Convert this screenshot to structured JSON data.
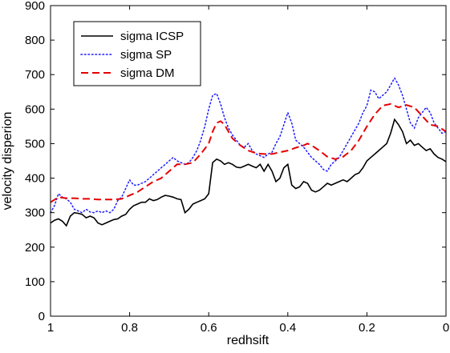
{
  "chart_data": {
    "type": "line",
    "title": "",
    "xlabel": "redhsift",
    "ylabel": "velocity disperion",
    "xlim": [
      1,
      0
    ],
    "xaxis_reversed": true,
    "ylim": [
      0,
      900
    ],
    "xticks": [
      1,
      0.8,
      0.6,
      0.4,
      0.2,
      0
    ],
    "xtick_labels": [
      "1",
      "0.8",
      "0.6",
      "0.4",
      "0.2",
      "0"
    ],
    "yticks": [
      0,
      100,
      200,
      300,
      400,
      500,
      600,
      700,
      800,
      900
    ],
    "ytick_labels": [
      "0",
      "100",
      "200",
      "300",
      "400",
      "500",
      "600",
      "700",
      "800",
      "900"
    ],
    "grid": false,
    "legend_position": "top-left",
    "series": [
      {
        "name": "sigma ICSP",
        "color": "#000000",
        "style": "solid",
        "x": [
          1.0,
          0.99,
          0.98,
          0.97,
          0.96,
          0.95,
          0.94,
          0.93,
          0.92,
          0.91,
          0.9,
          0.89,
          0.88,
          0.87,
          0.86,
          0.85,
          0.84,
          0.83,
          0.82,
          0.81,
          0.8,
          0.79,
          0.78,
          0.77,
          0.76,
          0.75,
          0.74,
          0.73,
          0.72,
          0.71,
          0.7,
          0.69,
          0.68,
          0.67,
          0.66,
          0.65,
          0.64,
          0.63,
          0.62,
          0.61,
          0.6,
          0.59,
          0.58,
          0.57,
          0.56,
          0.55,
          0.54,
          0.53,
          0.52,
          0.51,
          0.5,
          0.49,
          0.48,
          0.47,
          0.46,
          0.45,
          0.44,
          0.43,
          0.42,
          0.41,
          0.4,
          0.39,
          0.38,
          0.37,
          0.36,
          0.35,
          0.34,
          0.33,
          0.32,
          0.31,
          0.3,
          0.29,
          0.28,
          0.27,
          0.26,
          0.25,
          0.24,
          0.23,
          0.22,
          0.21,
          0.2,
          0.19,
          0.18,
          0.17,
          0.16,
          0.15,
          0.14,
          0.13,
          0.12,
          0.11,
          0.1,
          0.09,
          0.08,
          0.07,
          0.06,
          0.05,
          0.04,
          0.03,
          0.02,
          0.01,
          0.0
        ],
        "values": [
          270,
          278,
          282,
          275,
          262,
          290,
          300,
          298,
          295,
          285,
          290,
          285,
          270,
          265,
          270,
          275,
          280,
          282,
          290,
          295,
          310,
          320,
          325,
          330,
          330,
          340,
          335,
          338,
          345,
          350,
          348,
          345,
          340,
          338,
          300,
          310,
          325,
          330,
          335,
          340,
          355,
          445,
          455,
          450,
          440,
          445,
          440,
          432,
          430,
          435,
          440,
          435,
          430,
          440,
          420,
          440,
          420,
          390,
          400,
          430,
          440,
          380,
          370,
          375,
          390,
          385,
          365,
          360,
          365,
          375,
          385,
          380,
          385,
          390,
          395,
          390,
          400,
          410,
          415,
          430,
          450,
          460,
          470,
          480,
          490,
          500,
          530,
          570,
          555,
          535,
          500,
          510,
          495,
          500,
          490,
          480,
          485,
          470,
          460,
          455,
          448
        ]
      },
      {
        "name": "sigma SP",
        "color": "#1a1aff",
        "style": "dotted",
        "x": [
          1.0,
          0.99,
          0.98,
          0.97,
          0.96,
          0.95,
          0.94,
          0.93,
          0.92,
          0.91,
          0.9,
          0.89,
          0.88,
          0.87,
          0.86,
          0.85,
          0.84,
          0.83,
          0.82,
          0.81,
          0.8,
          0.79,
          0.78,
          0.77,
          0.76,
          0.75,
          0.74,
          0.73,
          0.72,
          0.71,
          0.7,
          0.69,
          0.68,
          0.67,
          0.66,
          0.65,
          0.64,
          0.63,
          0.62,
          0.61,
          0.6,
          0.59,
          0.58,
          0.57,
          0.56,
          0.55,
          0.54,
          0.53,
          0.52,
          0.51,
          0.5,
          0.49,
          0.48,
          0.47,
          0.46,
          0.45,
          0.44,
          0.43,
          0.42,
          0.41,
          0.4,
          0.39,
          0.38,
          0.37,
          0.36,
          0.35,
          0.34,
          0.33,
          0.32,
          0.31,
          0.3,
          0.29,
          0.28,
          0.27,
          0.26,
          0.25,
          0.24,
          0.23,
          0.22,
          0.21,
          0.2,
          0.19,
          0.18,
          0.17,
          0.16,
          0.15,
          0.14,
          0.13,
          0.12,
          0.11,
          0.1,
          0.09,
          0.08,
          0.07,
          0.06,
          0.05,
          0.04,
          0.03,
          0.02,
          0.01,
          0.0
        ],
        "values": [
          300,
          320,
          355,
          345,
          340,
          330,
          310,
          305,
          300,
          310,
          302,
          300,
          305,
          300,
          305,
          300,
          310,
          335,
          345,
          370,
          395,
          380,
          380,
          385,
          390,
          400,
          410,
          420,
          430,
          440,
          450,
          460,
          450,
          445,
          440,
          445,
          460,
          480,
          510,
          550,
          600,
          640,
          645,
          615,
          575,
          545,
          525,
          510,
          495,
          490,
          500,
          480,
          470,
          465,
          460,
          470,
          475,
          500,
          520,
          555,
          590,
          560,
          510,
          500,
          490,
          475,
          460,
          450,
          440,
          425,
          420,
          440,
          450,
          460,
          480,
          500,
          520,
          540,
          560,
          590,
          610,
          655,
          650,
          630,
          640,
          650,
          670,
          690,
          670,
          640,
          600,
          560,
          545,
          575,
          590,
          605,
          590,
          560,
          545,
          530,
          535
        ]
      },
      {
        "name": "sigma DM",
        "color": "#e60000",
        "style": "dashed",
        "x": [
          1.0,
          0.98,
          0.96,
          0.94,
          0.92,
          0.9,
          0.88,
          0.86,
          0.84,
          0.82,
          0.8,
          0.78,
          0.76,
          0.74,
          0.72,
          0.7,
          0.68,
          0.66,
          0.64,
          0.62,
          0.6,
          0.59,
          0.58,
          0.57,
          0.56,
          0.55,
          0.54,
          0.52,
          0.5,
          0.48,
          0.46,
          0.44,
          0.42,
          0.4,
          0.38,
          0.36,
          0.35,
          0.34,
          0.32,
          0.3,
          0.28,
          0.26,
          0.24,
          0.22,
          0.2,
          0.18,
          0.16,
          0.14,
          0.12,
          0.1,
          0.08,
          0.06,
          0.04,
          0.02,
          0.0
        ],
        "values": [
          330,
          345,
          342,
          342,
          340,
          340,
          338,
          338,
          338,
          340,
          350,
          360,
          375,
          390,
          400,
          420,
          440,
          440,
          445,
          470,
          500,
          535,
          560,
          565,
          555,
          535,
          515,
          495,
          480,
          472,
          470,
          470,
          475,
          480,
          488,
          495,
          500,
          495,
          480,
          462,
          455,
          462,
          480,
          510,
          550,
          585,
          610,
          615,
          605,
          612,
          605,
          580,
          555,
          550,
          535
        ]
      }
    ]
  }
}
